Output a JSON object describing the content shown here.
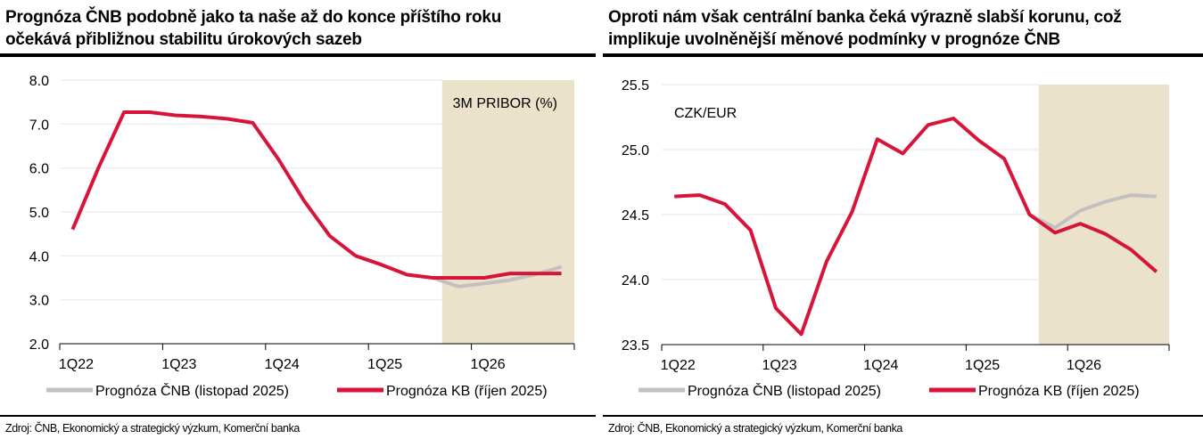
{
  "colors": {
    "kb": "#d7153a",
    "cnb": "#c4c0c0",
    "forecast_shade": "#ebe2cc",
    "grid": "#eeeeee"
  },
  "chart_data": [
    {
      "type": "line",
      "title": "Prognóza ČNB podobně jako ta naše až do konce příštího roku očekává přibližnou stabilitu úrokových sazeb",
      "title_lines": [
        "Prognóza ČNB podobně jako ta naše až do konce příštího roku",
        "očekává přibližnou stabilitu úrokových sazeb"
      ],
      "annotation": "3M PRIBOR (%)",
      "quarters": [
        "1Q22",
        "2Q22",
        "3Q22",
        "4Q22",
        "1Q23",
        "2Q23",
        "3Q23",
        "4Q23",
        "1Q24",
        "2Q24",
        "3Q24",
        "4Q24",
        "1Q25",
        "2Q25",
        "3Q25",
        "4Q25",
        "1Q26",
        "2Q26",
        "3Q26",
        "4Q26"
      ],
      "xtick_labels": [
        "1Q22",
        "1Q23",
        "1Q24",
        "1Q25",
        "1Q26"
      ],
      "ylim": [
        2.0,
        8.0
      ],
      "yticks": [
        "2.0",
        "3.0",
        "4.0",
        "5.0",
        "6.0",
        "7.0",
        "8.0"
      ],
      "grid": true,
      "forecast_shade_from": "4Q25",
      "series": [
        {
          "name": "Prognóza ČNB (listopad 2025)",
          "color": "#c4c0c0",
          "values": [
            null,
            null,
            null,
            null,
            null,
            null,
            null,
            null,
            null,
            null,
            null,
            null,
            null,
            null,
            3.5,
            3.3,
            3.37,
            3.45,
            3.58,
            3.75
          ]
        },
        {
          "name": "Prognóza KB (říjen 2025)",
          "color": "#d7153a",
          "values": [
            4.6,
            6.0,
            7.27,
            7.27,
            7.2,
            7.17,
            7.12,
            7.03,
            6.2,
            5.25,
            4.45,
            4.0,
            3.8,
            3.57,
            3.5,
            3.5,
            3.5,
            3.6,
            3.6,
            3.6
          ]
        }
      ],
      "legend": "bottom",
      "source": "Zdroj: ČNB, Ekonomický a strategický výzkum, Komerční banka"
    },
    {
      "type": "line",
      "title": "Oproti nám však centrální banka čeká výrazně slabší korunu, což implikuje uvolněnější měnové podmínky v prognóze ČNB",
      "title_lines": [
        "Oproti nám však centrální banka čeká výrazně slabší korunu, což",
        "implikuje uvolněnější měnové podmínky v prognóze ČNB"
      ],
      "annotation": "CZK/EUR",
      "quarters": [
        "1Q22",
        "2Q22",
        "3Q22",
        "4Q22",
        "1Q23",
        "2Q23",
        "3Q23",
        "4Q23",
        "1Q24",
        "2Q24",
        "3Q24",
        "4Q24",
        "1Q25",
        "2Q25",
        "3Q25",
        "4Q25",
        "1Q26",
        "2Q26",
        "3Q26",
        "4Q26"
      ],
      "xtick_labels": [
        "1Q22",
        "1Q23",
        "1Q24",
        "1Q25",
        "1Q26"
      ],
      "ylim": [
        23.5,
        25.5
      ],
      "yticks": [
        "23.5",
        "24.0",
        "24.5",
        "25.0",
        "25.5"
      ],
      "grid": true,
      "forecast_shade_from": "4Q25",
      "series": [
        {
          "name": "Prognóza ČNB (listopad 2025)",
          "color": "#c4c0c0",
          "values": [
            null,
            null,
            null,
            null,
            null,
            null,
            null,
            null,
            null,
            null,
            null,
            null,
            null,
            null,
            24.5,
            24.4,
            24.53,
            24.6,
            24.65,
            24.64
          ]
        },
        {
          "name": "Prognóza KB (říjen 2025)",
          "color": "#d7153a",
          "values": [
            24.64,
            24.65,
            24.58,
            24.38,
            23.78,
            23.58,
            24.14,
            24.52,
            25.08,
            24.97,
            25.19,
            25.24,
            25.07,
            24.93,
            24.5,
            24.36,
            24.43,
            24.35,
            24.23,
            24.06
          ]
        }
      ],
      "legend": "bottom",
      "source": "Zdroj: ČNB, Ekonomický a strategický výzkum, Komerční banka"
    }
  ]
}
